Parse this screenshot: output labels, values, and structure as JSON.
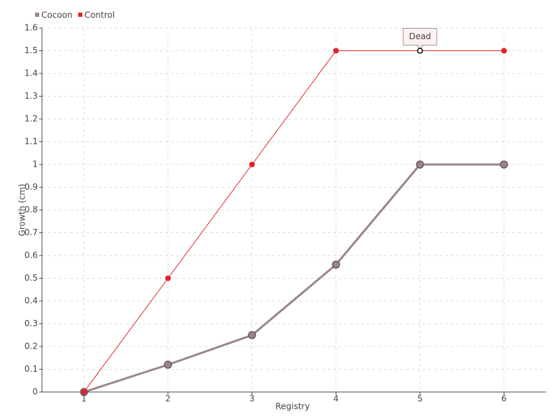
{
  "chart_data": {
    "type": "line",
    "x_label": "Registry",
    "y_label": "Growth (cm)",
    "x": [
      1,
      2,
      3,
      4,
      5,
      6
    ],
    "series": [
      {
        "name": "Cocoon",
        "color": "#9a8589",
        "values": [
          0,
          0.12,
          0.25,
          0.56,
          1,
          1
        ]
      },
      {
        "name": "Control",
        "color": "#e3202b",
        "values": [
          0,
          0.5,
          1,
          1.5,
          1.5,
          1.5
        ]
      }
    ],
    "xlim": [
      0.5,
      6.5
    ],
    "xticks": [
      1,
      2,
      3,
      4,
      5,
      6
    ],
    "ylim": [
      0,
      1.6
    ],
    "yticks": [
      0,
      0.1,
      0.2,
      0.3,
      0.4,
      0.5,
      0.6,
      0.7,
      0.8,
      0.9,
      1,
      1.1,
      1.2,
      1.3,
      1.4,
      1.5,
      1.6
    ],
    "grid": true,
    "legend": "top-left",
    "annotations": [
      {
        "text": "Dead",
        "x": 5,
        "y": 1.5
      }
    ]
  }
}
